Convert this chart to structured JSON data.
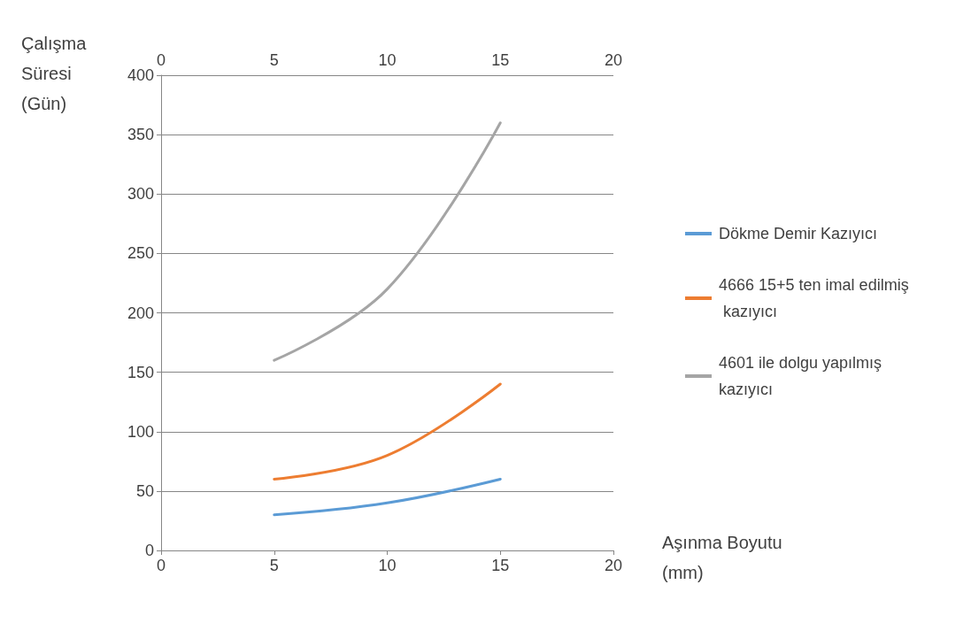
{
  "chart_data": {
    "type": "line",
    "xlabel": "Aşınma Boyutu (mm)",
    "ylabel": "Çalışma Süresi (Gün)",
    "x": [
      5,
      10,
      15
    ],
    "series": [
      {
        "name": "Dökme Demir Kazıyıcı",
        "color": "#5b9bd5",
        "values": [
          30,
          40,
          60
        ]
      },
      {
        "name": "4666 15+5 ten imal edilmiş kazıyıcı",
        "color": "#ed7d31",
        "values": [
          60,
          80,
          140
        ]
      },
      {
        "name": "4601 ile dolgu yapılmış kazıyıcı",
        "color": "#a5a5a5",
        "values": [
          160,
          220,
          360
        ]
      }
    ],
    "xlim": [
      0,
      20
    ],
    "xticks": [
      0,
      5,
      10,
      15,
      20
    ],
    "x2lim": [
      0,
      20
    ],
    "x2ticks": [
      0,
      5,
      10,
      15,
      20
    ],
    "ylim": [
      0,
      400
    ],
    "yticks": [
      0,
      50,
      100,
      150,
      200,
      250,
      300,
      350,
      400
    ],
    "grid": "y",
    "legend": "right",
    "marker": "none",
    "line_style": "solid"
  }
}
